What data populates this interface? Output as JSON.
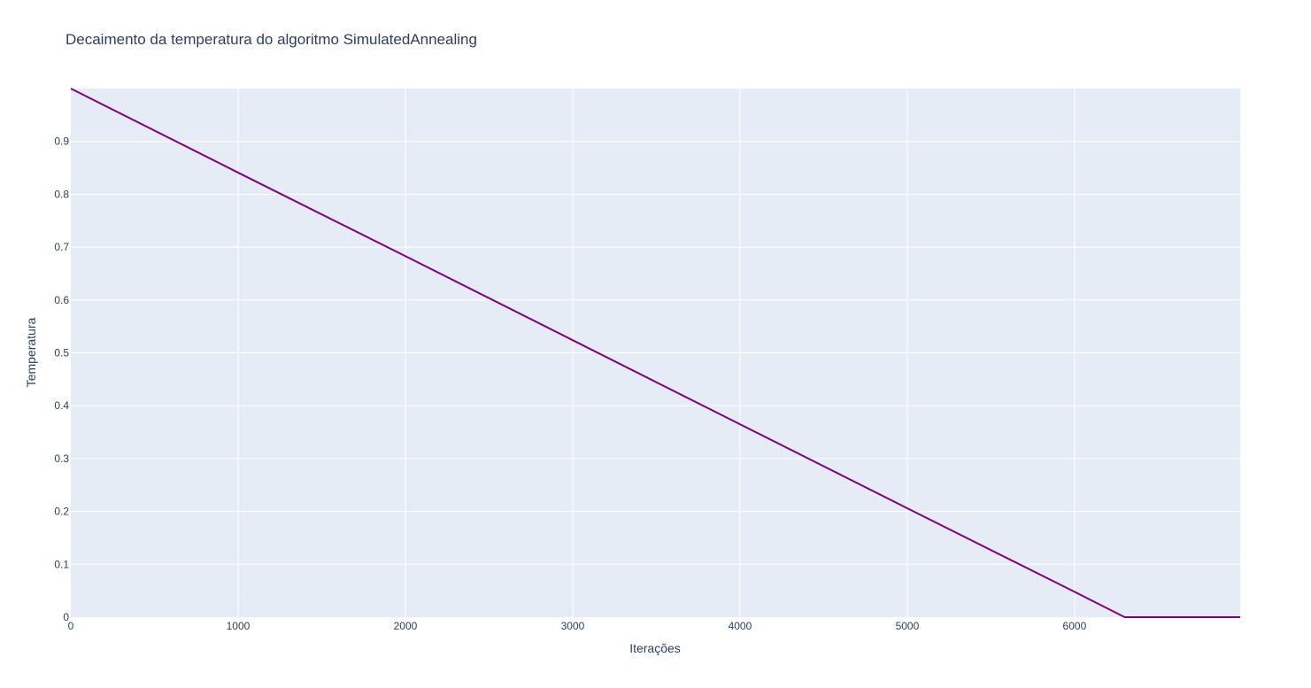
{
  "chart_data": {
    "type": "line",
    "title": "Decaimento da temperatura do algoritmo SimulatedAnnealing",
    "xlabel": "Iterações",
    "ylabel": "Temperatura",
    "xlim": [
      0,
      6990
    ],
    "ylim": [
      0,
      1
    ],
    "x_ticks": [
      0,
      1000,
      2000,
      3000,
      4000,
      5000,
      6000
    ],
    "x_tick_labels": [
      "0",
      "1000",
      "2000",
      "3000",
      "4000",
      "5000",
      "6000"
    ],
    "y_ticks": [
      0,
      0.1,
      0.2,
      0.3,
      0.4,
      0.5,
      0.6,
      0.7,
      0.8,
      0.9
    ],
    "y_tick_labels": [
      "0",
      "0.1",
      "0.2",
      "0.3",
      "0.4",
      "0.5",
      "0.6",
      "0.7",
      "0.8",
      "0.9"
    ],
    "grid": true,
    "legend": false,
    "plot_background": "#e5ecf6",
    "grid_color": "#ffffff",
    "text_color": "#2a3f5f",
    "series": [
      {
        "color": "#800080",
        "x": [
          0,
          1000,
          2000,
          3000,
          4000,
          5000,
          6000,
          6300,
          6990
        ],
        "y": [
          1.0,
          0.841,
          0.683,
          0.524,
          0.365,
          0.206,
          0.048,
          0.0,
          0.0
        ]
      }
    ]
  }
}
